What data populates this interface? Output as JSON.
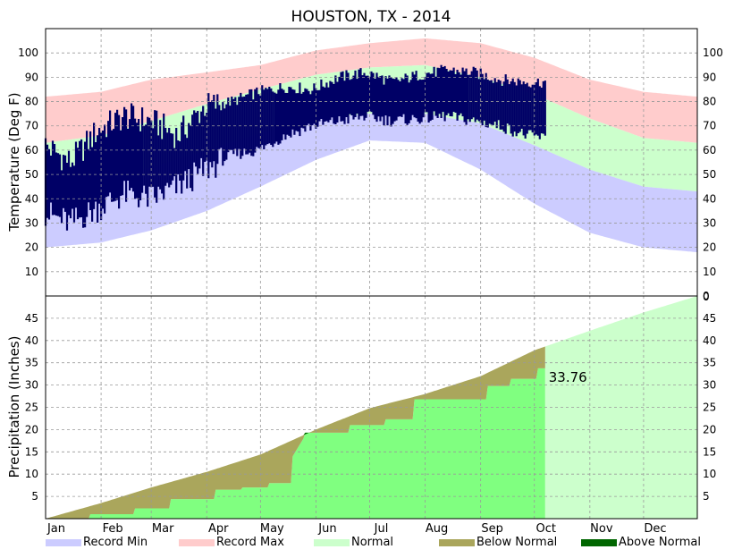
{
  "title": "HOUSTON, TX - 2014",
  "colors": {
    "record_min": "#ccccff",
    "record_max": "#ffcccc",
    "normal": "#ccffcc",
    "observed": "#000066",
    "below_normal": "#aaa65c",
    "above_normal": "#006600",
    "actual_precip": "#80ff80",
    "grid": "#999999"
  },
  "legend": [
    {
      "label": "Record Min",
      "color": "#ccccff"
    },
    {
      "label": "Record Max",
      "color": "#ffcccc"
    },
    {
      "label": "Normal",
      "color": "#ccffcc"
    },
    {
      "label": "Below Normal",
      "color": "#aaa65c"
    },
    {
      "label": "Above Normal",
      "color": "#006600"
    }
  ],
  "chart_data": [
    {
      "type": "area",
      "name": "temperature",
      "ylabel": "Temperature (Deg F)",
      "ylim": [
        0,
        110
      ],
      "yticks": [
        0,
        10,
        20,
        30,
        40,
        50,
        60,
        70,
        80,
        90,
        100
      ],
      "months": [
        "Jan",
        "Feb",
        "Mar",
        "Apr",
        "May",
        "Jun",
        "Jul",
        "Aug",
        "Sep",
        "Oct",
        "Nov",
        "Dec"
      ],
      "grid": true,
      "last_observed_day": 280,
      "record_max": {
        "day": [
          1,
          32,
          60,
          91,
          121,
          152,
          182,
          213,
          244,
          274,
          305,
          335,
          365
        ],
        "value": [
          82,
          84,
          89,
          92,
          95,
          101,
          104,
          106,
          104,
          98,
          89,
          84,
          82
        ]
      },
      "normal_high": {
        "day": [
          1,
          32,
          60,
          91,
          121,
          152,
          182,
          213,
          244,
          274,
          305,
          335,
          365
        ],
        "value": [
          63,
          66,
          72,
          79,
          85,
          91,
          94,
          95,
          90,
          83,
          73,
          65,
          63
        ]
      },
      "normal_low": {
        "day": [
          1,
          32,
          60,
          91,
          121,
          152,
          182,
          213,
          244,
          274,
          305,
          335,
          365
        ],
        "value": [
          44,
          47,
          53,
          60,
          67,
          73,
          75,
          75,
          71,
          62,
          52,
          45,
          43
        ]
      },
      "record_min": {
        "day": [
          1,
          32,
          60,
          91,
          121,
          152,
          182,
          213,
          244,
          274,
          305,
          335,
          365
        ],
        "value": [
          20,
          22,
          27,
          35,
          45,
          56,
          64,
          63,
          52,
          38,
          26,
          20,
          18
        ]
      },
      "observed_high": {
        "day": [
          1,
          15,
          30,
          45,
          60,
          75,
          90,
          105,
          120,
          135,
          150,
          165,
          180,
          195,
          210,
          225,
          240,
          255,
          270,
          280
        ],
        "value": [
          62,
          55,
          68,
          74,
          72,
          66,
          78,
          80,
          84,
          86,
          85,
          90,
          92,
          88,
          91,
          93,
          92,
          89,
          88,
          88
        ]
      },
      "observed_low": {
        "day": [
          1,
          15,
          30,
          45,
          60,
          75,
          90,
          105,
          120,
          135,
          150,
          165,
          180,
          195,
          210,
          225,
          240,
          255,
          270,
          280
        ],
        "value": [
          34,
          30,
          36,
          42,
          40,
          45,
          52,
          58,
          60,
          66,
          70,
          72,
          74,
          72,
          73,
          74,
          72,
          70,
          66,
          65
        ]
      }
    },
    {
      "type": "area",
      "name": "precipitation",
      "ylabel": "Precipitation (Inches)",
      "ylim": [
        0,
        50
      ],
      "yticks": [
        5,
        10,
        15,
        20,
        25,
        30,
        35,
        40,
        45
      ],
      "months": [
        "Jan",
        "Feb",
        "Mar",
        "Apr",
        "May",
        "Jun",
        "Jul",
        "Aug",
        "Sep",
        "Oct",
        "Nov",
        "Dec"
      ],
      "grid": true,
      "annotation": "33.76",
      "last_observed_day": 280,
      "normal_cumulative": {
        "day": [
          1,
          32,
          60,
          91,
          121,
          152,
          182,
          213,
          244,
          274,
          305,
          335,
          365
        ],
        "value": [
          0,
          3.5,
          7.0,
          10.5,
          14.4,
          20.0,
          24.8,
          28.0,
          32.0,
          37.8,
          42.2,
          46.3,
          50.0
        ]
      },
      "actual_cumulative": {
        "day": [
          1,
          25,
          26,
          50,
          51,
          70,
          71,
          95,
          96,
          110,
          111,
          125,
          126,
          138,
          139,
          145,
          146,
          170,
          171,
          190,
          191,
          206,
          207,
          247,
          248,
          260,
          261,
          275,
          276,
          280
        ],
        "value": [
          0,
          0,
          1.0,
          1.0,
          2.3,
          2.3,
          4.4,
          4.4,
          6.5,
          6.5,
          7.0,
          7.0,
          8.0,
          8.0,
          14.0,
          18.0,
          19.3,
          19.3,
          21.0,
          21.0,
          22.3,
          22.3,
          26.8,
          26.8,
          29.8,
          29.8,
          31.4,
          31.4,
          33.76,
          33.76
        ]
      }
    }
  ]
}
